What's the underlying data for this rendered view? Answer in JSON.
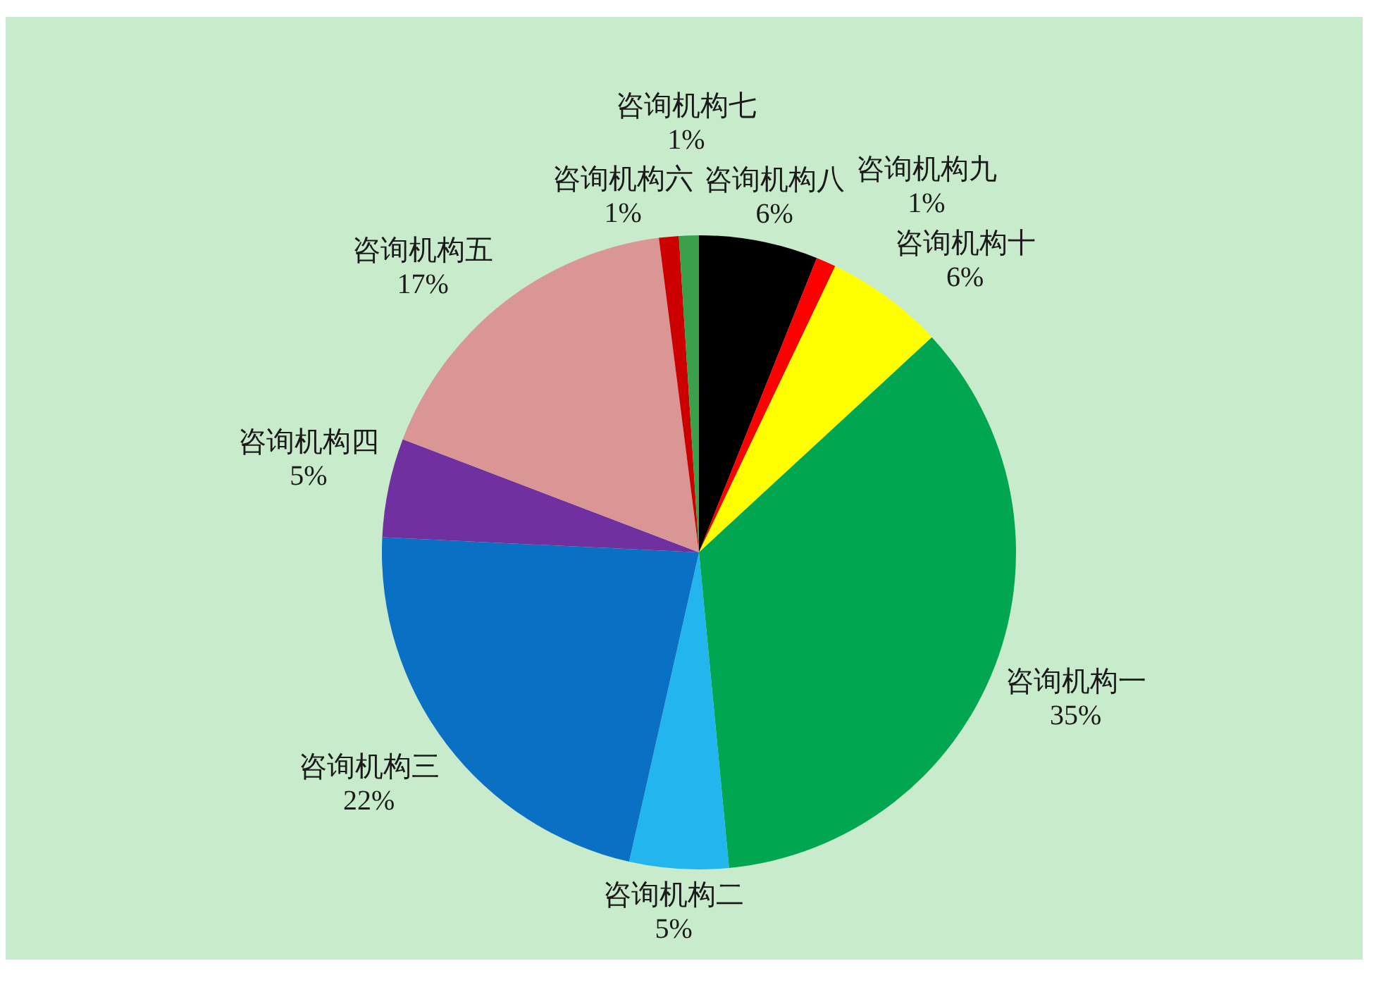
{
  "chart_data": {
    "type": "pie",
    "categories": [
      "咨询机构八",
      "咨询机构九",
      "咨询机构十",
      "咨询机构一",
      "咨询机构二",
      "咨询机构三",
      "咨询机构四",
      "咨询机构五",
      "咨询机构六",
      "咨询机构七"
    ],
    "values": [
      6,
      1,
      6,
      35,
      5,
      22,
      5,
      17,
      1,
      1
    ],
    "colors": [
      "#000000",
      "#ff0000",
      "#ffff00",
      "#00a650",
      "#22b5ee",
      "#0a70c4",
      "#7030a0",
      "#d99694",
      "#cc0000",
      "#3aa04a"
    ],
    "value_labels": [
      "6%",
      "1%",
      "6%",
      "35%",
      "5%",
      "22%",
      "5%",
      "17%",
      "1%",
      "1%"
    ]
  }
}
